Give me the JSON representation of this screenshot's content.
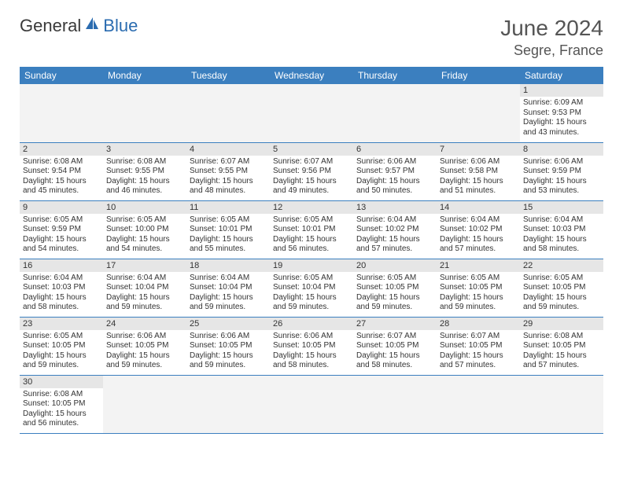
{
  "colors": {
    "header_bg": "#3b7fbf",
    "header_text": "#ffffff",
    "day_num_bg": "#e6e6e6",
    "empty_bg": "#f3f3f3",
    "border": "#3b7fbf",
    "text": "#333333",
    "logo_general": "#3a3a3a",
    "logo_blue": "#2b6cb0",
    "title_color": "#555555"
  },
  "typography": {
    "month_fontsize": 28,
    "location_fontsize": 18,
    "header_fontsize": 12,
    "daynum_fontsize": 11,
    "dayinfo_fontsize": 10
  },
  "logo": {
    "general": "General",
    "blue": "Blue"
  },
  "title": {
    "month_year": "June 2024",
    "location": "Segre, France"
  },
  "weekdays": [
    "Sunday",
    "Monday",
    "Tuesday",
    "Wednesday",
    "Thursday",
    "Friday",
    "Saturday"
  ],
  "weeks": [
    [
      {
        "empty": true
      },
      {
        "empty": true
      },
      {
        "empty": true
      },
      {
        "empty": true
      },
      {
        "empty": true
      },
      {
        "empty": true
      },
      {
        "num": "1",
        "sr": "Sunrise: 6:09 AM",
        "ss": "Sunset: 9:53 PM",
        "dl1": "Daylight: 15 hours",
        "dl2": "and 43 minutes."
      }
    ],
    [
      {
        "num": "2",
        "sr": "Sunrise: 6:08 AM",
        "ss": "Sunset: 9:54 PM",
        "dl1": "Daylight: 15 hours",
        "dl2": "and 45 minutes."
      },
      {
        "num": "3",
        "sr": "Sunrise: 6:08 AM",
        "ss": "Sunset: 9:55 PM",
        "dl1": "Daylight: 15 hours",
        "dl2": "and 46 minutes."
      },
      {
        "num": "4",
        "sr": "Sunrise: 6:07 AM",
        "ss": "Sunset: 9:55 PM",
        "dl1": "Daylight: 15 hours",
        "dl2": "and 48 minutes."
      },
      {
        "num": "5",
        "sr": "Sunrise: 6:07 AM",
        "ss": "Sunset: 9:56 PM",
        "dl1": "Daylight: 15 hours",
        "dl2": "and 49 minutes."
      },
      {
        "num": "6",
        "sr": "Sunrise: 6:06 AM",
        "ss": "Sunset: 9:57 PM",
        "dl1": "Daylight: 15 hours",
        "dl2": "and 50 minutes."
      },
      {
        "num": "7",
        "sr": "Sunrise: 6:06 AM",
        "ss": "Sunset: 9:58 PM",
        "dl1": "Daylight: 15 hours",
        "dl2": "and 51 minutes."
      },
      {
        "num": "8",
        "sr": "Sunrise: 6:06 AM",
        "ss": "Sunset: 9:59 PM",
        "dl1": "Daylight: 15 hours",
        "dl2": "and 53 minutes."
      }
    ],
    [
      {
        "num": "9",
        "sr": "Sunrise: 6:05 AM",
        "ss": "Sunset: 9:59 PM",
        "dl1": "Daylight: 15 hours",
        "dl2": "and 54 minutes."
      },
      {
        "num": "10",
        "sr": "Sunrise: 6:05 AM",
        "ss": "Sunset: 10:00 PM",
        "dl1": "Daylight: 15 hours",
        "dl2": "and 54 minutes."
      },
      {
        "num": "11",
        "sr": "Sunrise: 6:05 AM",
        "ss": "Sunset: 10:01 PM",
        "dl1": "Daylight: 15 hours",
        "dl2": "and 55 minutes."
      },
      {
        "num": "12",
        "sr": "Sunrise: 6:05 AM",
        "ss": "Sunset: 10:01 PM",
        "dl1": "Daylight: 15 hours",
        "dl2": "and 56 minutes."
      },
      {
        "num": "13",
        "sr": "Sunrise: 6:04 AM",
        "ss": "Sunset: 10:02 PM",
        "dl1": "Daylight: 15 hours",
        "dl2": "and 57 minutes."
      },
      {
        "num": "14",
        "sr": "Sunrise: 6:04 AM",
        "ss": "Sunset: 10:02 PM",
        "dl1": "Daylight: 15 hours",
        "dl2": "and 57 minutes."
      },
      {
        "num": "15",
        "sr": "Sunrise: 6:04 AM",
        "ss": "Sunset: 10:03 PM",
        "dl1": "Daylight: 15 hours",
        "dl2": "and 58 minutes."
      }
    ],
    [
      {
        "num": "16",
        "sr": "Sunrise: 6:04 AM",
        "ss": "Sunset: 10:03 PM",
        "dl1": "Daylight: 15 hours",
        "dl2": "and 58 minutes."
      },
      {
        "num": "17",
        "sr": "Sunrise: 6:04 AM",
        "ss": "Sunset: 10:04 PM",
        "dl1": "Daylight: 15 hours",
        "dl2": "and 59 minutes."
      },
      {
        "num": "18",
        "sr": "Sunrise: 6:04 AM",
        "ss": "Sunset: 10:04 PM",
        "dl1": "Daylight: 15 hours",
        "dl2": "and 59 minutes."
      },
      {
        "num": "19",
        "sr": "Sunrise: 6:05 AM",
        "ss": "Sunset: 10:04 PM",
        "dl1": "Daylight: 15 hours",
        "dl2": "and 59 minutes."
      },
      {
        "num": "20",
        "sr": "Sunrise: 6:05 AM",
        "ss": "Sunset: 10:05 PM",
        "dl1": "Daylight: 15 hours",
        "dl2": "and 59 minutes."
      },
      {
        "num": "21",
        "sr": "Sunrise: 6:05 AM",
        "ss": "Sunset: 10:05 PM",
        "dl1": "Daylight: 15 hours",
        "dl2": "and 59 minutes."
      },
      {
        "num": "22",
        "sr": "Sunrise: 6:05 AM",
        "ss": "Sunset: 10:05 PM",
        "dl1": "Daylight: 15 hours",
        "dl2": "and 59 minutes."
      }
    ],
    [
      {
        "num": "23",
        "sr": "Sunrise: 6:05 AM",
        "ss": "Sunset: 10:05 PM",
        "dl1": "Daylight: 15 hours",
        "dl2": "and 59 minutes."
      },
      {
        "num": "24",
        "sr": "Sunrise: 6:06 AM",
        "ss": "Sunset: 10:05 PM",
        "dl1": "Daylight: 15 hours",
        "dl2": "and 59 minutes."
      },
      {
        "num": "25",
        "sr": "Sunrise: 6:06 AM",
        "ss": "Sunset: 10:05 PM",
        "dl1": "Daylight: 15 hours",
        "dl2": "and 59 minutes."
      },
      {
        "num": "26",
        "sr": "Sunrise: 6:06 AM",
        "ss": "Sunset: 10:05 PM",
        "dl1": "Daylight: 15 hours",
        "dl2": "and 58 minutes."
      },
      {
        "num": "27",
        "sr": "Sunrise: 6:07 AM",
        "ss": "Sunset: 10:05 PM",
        "dl1": "Daylight: 15 hours",
        "dl2": "and 58 minutes."
      },
      {
        "num": "28",
        "sr": "Sunrise: 6:07 AM",
        "ss": "Sunset: 10:05 PM",
        "dl1": "Daylight: 15 hours",
        "dl2": "and 57 minutes."
      },
      {
        "num": "29",
        "sr": "Sunrise: 6:08 AM",
        "ss": "Sunset: 10:05 PM",
        "dl1": "Daylight: 15 hours",
        "dl2": "and 57 minutes."
      }
    ],
    [
      {
        "num": "30",
        "sr": "Sunrise: 6:08 AM",
        "ss": "Sunset: 10:05 PM",
        "dl1": "Daylight: 15 hours",
        "dl2": "and 56 minutes."
      },
      {
        "empty": true
      },
      {
        "empty": true
      },
      {
        "empty": true
      },
      {
        "empty": true
      },
      {
        "empty": true
      },
      {
        "empty": true
      }
    ]
  ]
}
